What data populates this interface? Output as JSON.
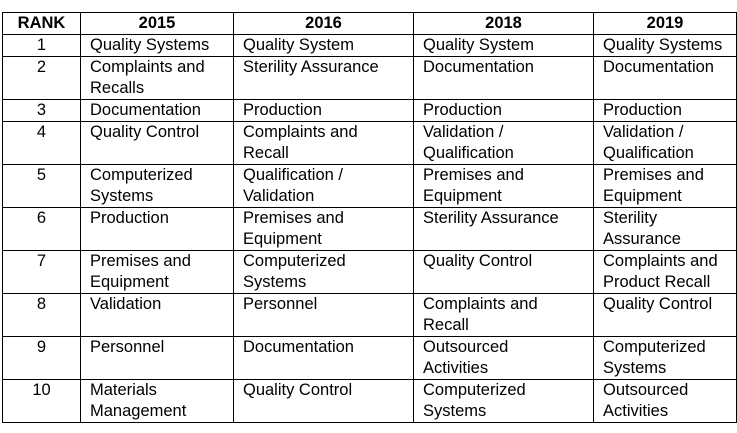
{
  "table": {
    "headers": [
      "RANK",
      "2015",
      "2016",
      "2018",
      "2019"
    ],
    "rows": [
      {
        "rank": "1",
        "c2015": "Quality Systems",
        "c2016": "Quality System",
        "c2018": "Quality System",
        "c2019": "Quality Systems"
      },
      {
        "rank": "2",
        "c2015": "Complaints and\nRecalls",
        "c2016": "Sterility Assurance",
        "c2018": "Documentation",
        "c2019": "Documentation"
      },
      {
        "rank": "3",
        "c2015": "Documentation",
        "c2016": "Production",
        "c2018": "Production",
        "c2019": "Production"
      },
      {
        "rank": "4",
        "c2015": "Quality Control",
        "c2016": "Complaints and\nRecall",
        "c2018": "Validation /\nQualification",
        "c2019": "Validation /\nQualification"
      },
      {
        "rank": "5",
        "c2015": "Computerized\nSystems",
        "c2016": "Qualification /\nValidation",
        "c2018": "Premises and\nEquipment",
        "c2019": "Premises and\nEquipment"
      },
      {
        "rank": "6",
        "c2015": "Production",
        "c2016": "Premises and\nEquipment",
        "c2018": "Sterility Assurance",
        "c2019": "Sterility\nAssurance"
      },
      {
        "rank": "7",
        "c2015": "Premises and\nEquipment",
        "c2016": "Computerized\nSystems",
        "c2018": "Quality Control",
        "c2019": "Complaints and\nProduct Recall"
      },
      {
        "rank": "8",
        "c2015": "Validation",
        "c2016": "Personnel",
        "c2018": "Complaints and\nRecall",
        "c2019": "Quality Control"
      },
      {
        "rank": "9",
        "c2015": "Personnel",
        "c2016": "Documentation",
        "c2018": "Outsourced\nActivities",
        "c2019": "Computerized\nSystems"
      },
      {
        "rank": "10",
        "c2015": "Materials\nManagement",
        "c2016": "Quality Control",
        "c2018": "Computerized\nSystems",
        "c2019": "Outsourced\nActivities"
      }
    ]
  }
}
